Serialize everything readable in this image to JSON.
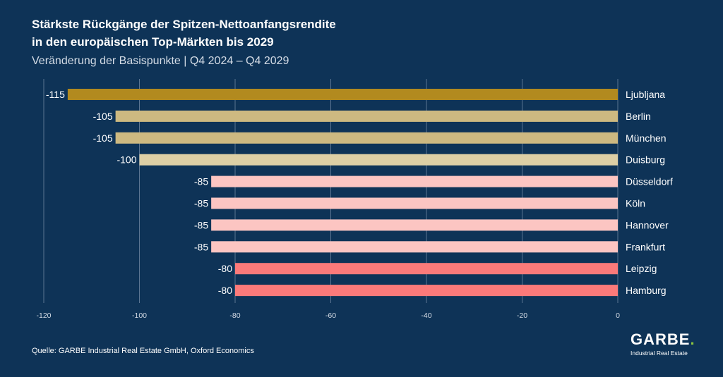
{
  "title_line1": "Stärkste Rückgänge der Spitzen-Nettoanfangsrendite",
  "title_line2": "in den europäischen Top-Märkten bis 2029",
  "subtitle": "Veränderung der Basispunkte | Q4 2024 – Q4 2029",
  "source": "Quelle: GARBE Industrial Real Estate GmbH, Oxford Economics",
  "logo": {
    "word": "GARBE",
    "dot": ".",
    "tagline": "Industrial Real Estate"
  },
  "chart_data": {
    "type": "bar",
    "orientation": "horizontal",
    "categories": [
      "Ljubljana",
      "Berlin",
      "München",
      "Duisburg",
      "Düsseldorf",
      "Köln",
      "Hannover",
      "Frankfurt",
      "Leipzig",
      "Hamburg"
    ],
    "values": [
      -115,
      -105,
      -105,
      -100,
      -85,
      -85,
      -85,
      -85,
      -80,
      -80
    ],
    "value_labels": [
      "-115",
      "-105",
      "-105",
      "-100",
      "-85",
      "-85",
      "-85",
      "-85",
      "-80",
      "-80"
    ],
    "bar_colors": [
      "#b28a1f",
      "#cdb981",
      "#cdb981",
      "#ddcfa5",
      "#fcc5c2",
      "#fcc5c2",
      "#fcc5c2",
      "#fcc5c2",
      "#fb7a7a",
      "#fb7a7a"
    ],
    "xlim": [
      -120,
      0
    ],
    "x_ticks": [
      -120,
      -100,
      -80,
      -60,
      -40,
      -20,
      0
    ],
    "grid": true,
    "legend": false,
    "colors": {
      "background": "#0e3357",
      "gridline": "#5b7592",
      "text": "#ffffff",
      "tick_text": "#d3dbe5"
    }
  }
}
